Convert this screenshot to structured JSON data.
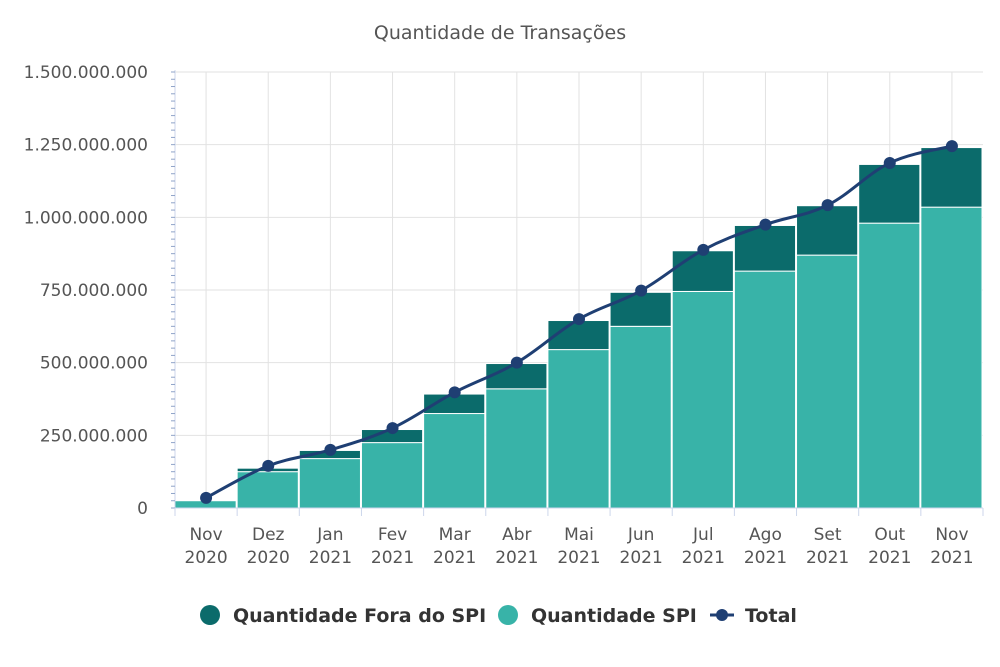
{
  "chart_data": {
    "type": "bar",
    "title": "Quantidade de Transações",
    "stacked": true,
    "ylim": [
      0,
      1500000000
    ],
    "yticks": [
      0,
      250000000,
      500000000,
      750000000,
      1000000000,
      1250000000,
      1500000000
    ],
    "ytick_labels": [
      "0",
      "250.000.000",
      "500.000.000",
      "750.000.000",
      "1.000.000.000",
      "1.250.000.000",
      "1.500.000.000"
    ],
    "categories": [
      {
        "month": "Nov",
        "year": "2020"
      },
      {
        "month": "Dez",
        "year": "2020"
      },
      {
        "month": "Jan",
        "year": "2021"
      },
      {
        "month": "Fev",
        "year": "2021"
      },
      {
        "month": "Mar",
        "year": "2021"
      },
      {
        "month": "Abr",
        "year": "2021"
      },
      {
        "month": "Mai",
        "year": "2021"
      },
      {
        "month": "Jun",
        "year": "2021"
      },
      {
        "month": "Jul",
        "year": "2021"
      },
      {
        "month": "Ago",
        "year": "2021"
      },
      {
        "month": "Set",
        "year": "2021"
      },
      {
        "month": "Out",
        "year": "2021"
      },
      {
        "month": "Nov",
        "year": "2021"
      }
    ],
    "series": [
      {
        "name": "Quantidade SPI",
        "type": "bar",
        "color": "#38b3a8",
        "values": [
          25000000,
          125000000,
          170000000,
          225000000,
          325000000,
          410000000,
          545000000,
          625000000,
          745000000,
          815000000,
          870000000,
          980000000,
          1035000000
        ]
      },
      {
        "name": "Quantidade Fora do SPI",
        "type": "bar",
        "color": "#0b6b6b",
        "values": [
          0,
          12000000,
          28000000,
          45000000,
          67000000,
          87000000,
          100000000,
          117000000,
          140000000,
          157000000,
          170000000,
          202000000,
          205000000
        ]
      },
      {
        "name": "Total",
        "type": "line",
        "color": "#1f3f73",
        "values": [
          35000000,
          145000000,
          200000000,
          275000000,
          398000000,
          500000000,
          650000000,
          748000000,
          888000000,
          975000000,
          1042000000,
          1187000000,
          1245000000
        ]
      }
    ],
    "legend": [
      {
        "name": "Quantidade Fora do SPI",
        "color": "#0b6b6b",
        "marker": "circle"
      },
      {
        "name": "Quantidade SPI",
        "color": "#38b3a8",
        "marker": "circle"
      },
      {
        "name": "Total",
        "color": "#1f3f73",
        "marker": "line"
      }
    ],
    "legend_position": "bottom",
    "grid": true
  }
}
